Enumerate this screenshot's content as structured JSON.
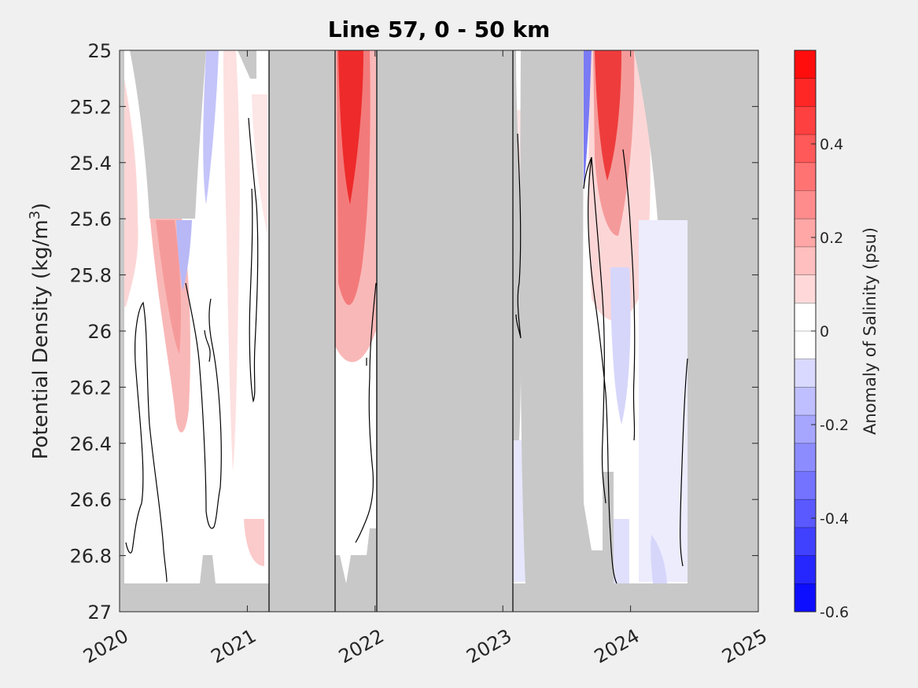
{
  "chart_data": {
    "type": "heatmap",
    "title": "Line 57, 0 - 50 km",
    "ylabel": "Potential Density (kg/m",
    "ylabel_sup": "3",
    "ylabel_close": ")",
    "colorbar_label": "Anomaly of Salinity (psu)",
    "ylim": [
      25,
      27
    ],
    "y_reversed": true,
    "xlim": [
      2020,
      2025
    ],
    "x_ticks": [
      2020,
      2021,
      2022,
      2023,
      2024,
      2025
    ],
    "x_tick_labels": [
      "2020",
      "2021",
      "2022",
      "2023",
      "2024",
      "2025"
    ],
    "y_ticks": [
      25,
      25.2,
      25.4,
      25.6,
      25.8,
      26,
      26.2,
      26.4,
      26.6,
      26.8,
      27
    ],
    "y_tick_labels": [
      "25",
      "25.2",
      "25.4",
      "25.6",
      "25.8",
      "26",
      "26.2",
      "26.4",
      "26.6",
      "26.8",
      "27"
    ],
    "colorbar_range": [
      -0.6,
      0.6
    ],
    "colorbar_ticks": [
      -0.6,
      -0.4,
      -0.2,
      0,
      0.2,
      0.4
    ],
    "colorbar_tick_labels": [
      "-0.6",
      "-0.4",
      "-0.2",
      "0",
      "0.2",
      "0.4"
    ],
    "colorbar_levels": 20,
    "missing_data_color": "#c8c8c8",
    "survey_boundaries": [
      2021.1,
      2021.62,
      2021.96,
      2023.04
    ],
    "anomaly_features": [
      {
        "x_start": 2020.0,
        "x_end": 2020.1,
        "y_top": 25.2,
        "y_bottom": 25.9,
        "value": 0.15
      },
      {
        "x_start": 2020.22,
        "x_end": 2020.48,
        "y_top": 25.6,
        "y_bottom": 26.35,
        "value": 0.2
      },
      {
        "x_start": 2020.48,
        "x_end": 2020.55,
        "y_top": 25.6,
        "y_bottom": 25.85,
        "value": -0.15
      },
      {
        "x_start": 2020.6,
        "x_end": 2020.7,
        "y_top": 25.0,
        "y_bottom": 25.6,
        "value": -0.2
      },
      {
        "x_start": 2020.8,
        "x_end": 2021.02,
        "y_top": 26.65,
        "y_bottom": 26.85,
        "value": 0.1
      },
      {
        "x_start": 2021.63,
        "x_end": 2021.88,
        "y_top": 25.0,
        "y_bottom": 26.1,
        "value": 0.5
      },
      {
        "x_start": 2023.55,
        "x_end": 2023.62,
        "y_top": 25.0,
        "y_bottom": 25.5,
        "value": -0.3
      },
      {
        "x_start": 2023.62,
        "x_end": 2023.85,
        "y_top": 25.0,
        "y_bottom": 26.0,
        "value": 0.45
      },
      {
        "x_start": 2023.75,
        "x_end": 2023.92,
        "y_top": 25.9,
        "y_bottom": 26.5,
        "value": -0.1
      },
      {
        "x_start": 2024.2,
        "x_end": 2024.45,
        "y_top": 25.6,
        "y_bottom": 26.9,
        "value": -0.05
      }
    ]
  }
}
